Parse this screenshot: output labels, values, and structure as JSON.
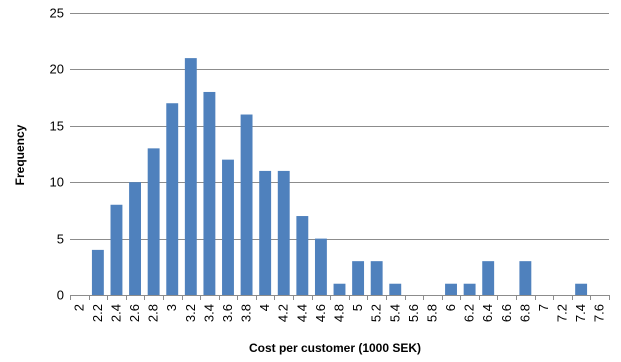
{
  "chart_data": {
    "type": "bar",
    "categories": [
      "2",
      "2.2",
      "2.4",
      "2.6",
      "2.8",
      "3",
      "3.2",
      "3.4",
      "3.6",
      "3.8",
      "4",
      "4.2",
      "4.4",
      "4.6",
      "4.8",
      "5",
      "5.2",
      "5.4",
      "5.6",
      "5.8",
      "6",
      "6.2",
      "6.4",
      "6.6",
      "6.8",
      "7",
      "7.2",
      "7.4",
      "7.6"
    ],
    "values": [
      0,
      4,
      8,
      10,
      13,
      17,
      21,
      18,
      12,
      16,
      11,
      11,
      7,
      5,
      1,
      3,
      3,
      1,
      0,
      0,
      1,
      1,
      3,
      0,
      3,
      0,
      0,
      1,
      0
    ],
    "title": "",
    "xlabel": "Cost per customer (1000 SEK)",
    "ylabel": "Frequency",
    "ylim": [
      0,
      25
    ],
    "yticks": [
      "0",
      "5",
      "10",
      "15",
      "20",
      "25"
    ],
    "grid": "horizontal",
    "legend": "none",
    "bar_color": "#4f81bd"
  }
}
